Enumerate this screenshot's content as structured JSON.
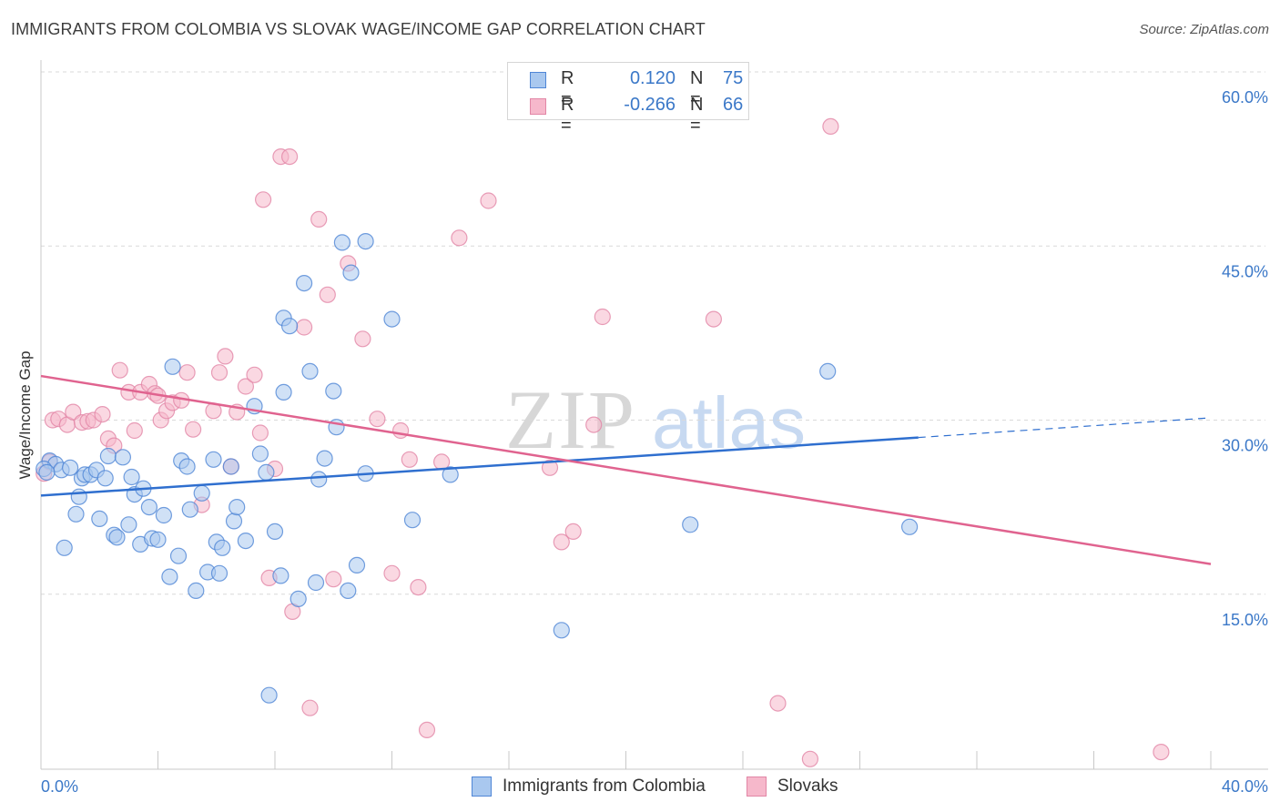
{
  "title": "IMMIGRANTS FROM COLOMBIA VS SLOVAK WAGE/INCOME GAP CORRELATION CHART",
  "source": "Source: ZipAtlas.com",
  "colors": {
    "blue_fill": "#a9c8ef",
    "blue_stroke": "#4f86d6",
    "blue_line": "#2f6fcf",
    "pink_fill": "#f6b8cb",
    "pink_stroke": "#e286a6",
    "pink_line": "#e0638f",
    "tick_label": "#3b78c8",
    "grid": "#d9d9d9"
  },
  "legend_top": {
    "rows": [
      {
        "series": "blue",
        "r_label": "R =",
        "r_value": "0.120",
        "n_label": "N =",
        "n_value": "75"
      },
      {
        "series": "pink",
        "r_label": "R =",
        "r_value": "-0.266",
        "n_label": "N =",
        "n_value": "66"
      }
    ]
  },
  "legend_bottom": {
    "blue_label": "Immigrants from Colombia",
    "pink_label": "Slovaks"
  },
  "watermark": {
    "zip": "ZIP",
    "atlas": "atlas"
  },
  "chart_data": {
    "type": "scatter",
    "title": "IMMIGRANTS FROM COLOMBIA VS SLOVAK WAGE/INCOME GAP CORRELATION CHART",
    "xlabel": "",
    "ylabel": "Wage/Income Gap",
    "xlim": [
      0,
      40
    ],
    "ylim": [
      0,
      60
    ],
    "x_tick_labels": [
      "0.0%",
      "40.0%"
    ],
    "y_ticks": [
      15,
      30,
      45,
      60
    ],
    "y_tick_labels": [
      "15.0%",
      "30.0%",
      "45.0%",
      "60.0%"
    ],
    "grid": true,
    "legend_placement": "top-center",
    "series": [
      {
        "name": "Immigrants from Colombia",
        "color": "blue",
        "trend": {
          "x": [
            0,
            30
          ],
          "y": [
            23.5,
            28.5
          ],
          "dashed_to": [
            40,
            30.2
          ]
        },
        "points": [
          [
            0.3,
            26.5
          ],
          [
            0.5,
            26.2
          ],
          [
            0.7,
            25.7
          ],
          [
            0.8,
            19.0
          ],
          [
            1.0,
            25.9
          ],
          [
            1.2,
            21.9
          ],
          [
            1.3,
            23.4
          ],
          [
            1.4,
            25.0
          ],
          [
            1.5,
            25.3
          ],
          [
            1.7,
            25.3
          ],
          [
            1.9,
            25.7
          ],
          [
            2.0,
            21.5
          ],
          [
            2.2,
            25.0
          ],
          [
            2.3,
            26.9
          ],
          [
            2.5,
            20.1
          ],
          [
            2.6,
            19.9
          ],
          [
            2.8,
            26.8
          ],
          [
            3.0,
            21.0
          ],
          [
            3.1,
            25.1
          ],
          [
            3.2,
            23.6
          ],
          [
            3.4,
            19.3
          ],
          [
            3.5,
            24.1
          ],
          [
            3.7,
            22.5
          ],
          [
            3.8,
            19.8
          ],
          [
            4.0,
            19.7
          ],
          [
            4.2,
            21.8
          ],
          [
            4.4,
            16.5
          ],
          [
            4.5,
            34.6
          ],
          [
            4.7,
            18.3
          ],
          [
            4.8,
            26.5
          ],
          [
            5.0,
            26.0
          ],
          [
            5.1,
            22.3
          ],
          [
            5.3,
            15.3
          ],
          [
            5.5,
            23.7
          ],
          [
            5.7,
            16.9
          ],
          [
            5.9,
            26.6
          ],
          [
            6.0,
            19.5
          ],
          [
            6.1,
            16.8
          ],
          [
            6.2,
            19.0
          ],
          [
            6.5,
            26.0
          ],
          [
            6.6,
            21.3
          ],
          [
            6.7,
            22.5
          ],
          [
            7.0,
            19.6
          ],
          [
            7.3,
            31.2
          ],
          [
            7.5,
            27.1
          ],
          [
            7.7,
            25.5
          ],
          [
            7.8,
            6.3
          ],
          [
            8.0,
            20.4
          ],
          [
            8.2,
            16.6
          ],
          [
            8.3,
            32.4
          ],
          [
            8.3,
            38.8
          ],
          [
            8.5,
            38.1
          ],
          [
            8.8,
            14.6
          ],
          [
            9.0,
            41.8
          ],
          [
            9.2,
            34.2
          ],
          [
            9.4,
            16.0
          ],
          [
            9.5,
            24.9
          ],
          [
            9.7,
            26.7
          ],
          [
            10.0,
            32.5
          ],
          [
            10.1,
            29.4
          ],
          [
            10.3,
            45.3
          ],
          [
            10.5,
            15.3
          ],
          [
            10.6,
            42.7
          ],
          [
            10.8,
            17.5
          ],
          [
            11.1,
            45.4
          ],
          [
            12.0,
            38.7
          ],
          [
            12.7,
            21.4
          ],
          [
            14.0,
            25.3
          ],
          [
            17.8,
            11.9
          ],
          [
            22.2,
            21.0
          ],
          [
            26.9,
            34.2
          ],
          [
            29.7,
            20.8
          ],
          [
            11.1,
            25.4
          ],
          [
            0.1,
            25.8
          ],
          [
            0.2,
            25.5
          ]
        ]
      },
      {
        "name": "Slovaks",
        "color": "pink",
        "trend": {
          "x": [
            0,
            40
          ],
          "y": [
            33.8,
            17.6
          ]
        },
        "points": [
          [
            0.1,
            25.4
          ],
          [
            0.3,
            26.4
          ],
          [
            0.4,
            30.0
          ],
          [
            0.6,
            30.1
          ],
          [
            0.9,
            29.6
          ],
          [
            1.1,
            30.7
          ],
          [
            1.4,
            29.8
          ],
          [
            1.6,
            29.9
          ],
          [
            1.8,
            30.0
          ],
          [
            2.1,
            30.5
          ],
          [
            2.3,
            28.4
          ],
          [
            2.5,
            27.8
          ],
          [
            2.7,
            34.3
          ],
          [
            3.0,
            32.4
          ],
          [
            3.2,
            29.1
          ],
          [
            3.4,
            32.4
          ],
          [
            3.7,
            33.1
          ],
          [
            3.9,
            32.3
          ],
          [
            4.0,
            32.1
          ],
          [
            4.1,
            30.0
          ],
          [
            4.3,
            30.8
          ],
          [
            4.5,
            31.5
          ],
          [
            4.8,
            31.7
          ],
          [
            5.0,
            34.1
          ],
          [
            5.2,
            29.2
          ],
          [
            5.5,
            22.7
          ],
          [
            5.9,
            30.8
          ],
          [
            6.1,
            34.1
          ],
          [
            6.3,
            35.5
          ],
          [
            6.5,
            26.0
          ],
          [
            6.7,
            30.7
          ],
          [
            7.0,
            32.9
          ],
          [
            7.3,
            33.9
          ],
          [
            7.5,
            28.9
          ],
          [
            7.6,
            49.0
          ],
          [
            7.8,
            16.4
          ],
          [
            8.0,
            25.8
          ],
          [
            8.2,
            52.7
          ],
          [
            8.5,
            52.7
          ],
          [
            8.6,
            13.5
          ],
          [
            9.0,
            38.0
          ],
          [
            9.2,
            5.2
          ],
          [
            9.5,
            47.3
          ],
          [
            9.8,
            40.8
          ],
          [
            10.0,
            16.3
          ],
          [
            10.5,
            43.5
          ],
          [
            11.0,
            37.0
          ],
          [
            11.5,
            30.1
          ],
          [
            12.0,
            16.8
          ],
          [
            12.3,
            29.1
          ],
          [
            12.6,
            26.6
          ],
          [
            12.9,
            15.6
          ],
          [
            13.2,
            3.3
          ],
          [
            13.7,
            26.4
          ],
          [
            14.3,
            45.7
          ],
          [
            15.3,
            48.9
          ],
          [
            17.4,
            25.9
          ],
          [
            17.8,
            19.5
          ],
          [
            18.2,
            20.4
          ],
          [
            18.9,
            29.6
          ],
          [
            19.2,
            38.9
          ],
          [
            23.0,
            38.7
          ],
          [
            25.2,
            5.6
          ],
          [
            26.3,
            0.8
          ],
          [
            27.0,
            55.3
          ],
          [
            38.3,
            1.4
          ]
        ]
      }
    ]
  }
}
